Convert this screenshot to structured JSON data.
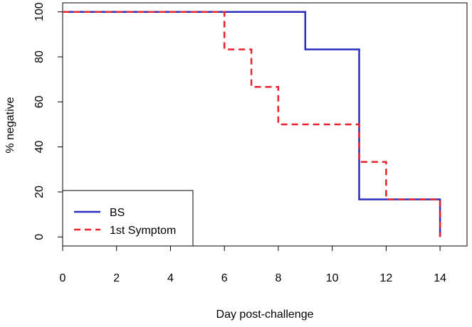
{
  "chart_data": {
    "type": "line",
    "step": true,
    "title": "",
    "xlabel": "Day post-challenge",
    "ylabel": "% negative",
    "xlim": [
      0,
      15
    ],
    "ylim": [
      -4,
      104
    ],
    "xticks": [
      0,
      2,
      4,
      6,
      8,
      10,
      12,
      14
    ],
    "yticks": [
      0,
      20,
      40,
      60,
      80,
      100
    ],
    "xtick_labels": [
      "0",
      "2",
      "4",
      "6",
      "8",
      "10",
      "12",
      "14"
    ],
    "ytick_labels": [
      "0",
      "20",
      "40",
      "60",
      "80",
      "100"
    ],
    "legend_position": "bottom-left",
    "series": [
      {
        "name": "BS",
        "style": "solid",
        "color": "#2b2bbf",
        "x": [
          0,
          9,
          9,
          11,
          11,
          14,
          14
        ],
        "y": [
          100,
          100,
          83.33,
          83.33,
          16.67,
          16.67,
          0
        ]
      },
      {
        "name": "1st Symptom",
        "style": "dashed",
        "color": "#e8202a",
        "x": [
          0,
          6,
          6,
          7,
          7,
          8,
          8,
          11,
          11,
          12,
          12,
          14,
          14
        ],
        "y": [
          100,
          100,
          83.33,
          83.33,
          66.67,
          66.67,
          50,
          50,
          33.33,
          33.33,
          16.67,
          16.67,
          0
        ]
      }
    ]
  }
}
